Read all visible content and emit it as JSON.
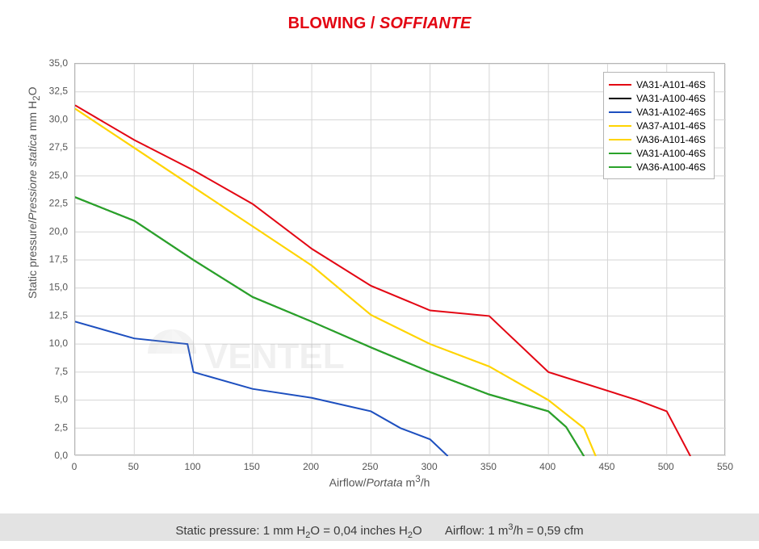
{
  "title": {
    "en": "BLOWING",
    "sep": " / ",
    "it": "SOFFIANTE"
  },
  "footer": {
    "static_label": "Static pressure: 1 mm H",
    "static_sub": "2",
    "static_tail": "O = 0,04 inches H",
    "static_sub2": "2",
    "static_tail2": "O",
    "airflow_label": "Airflow: 1 m",
    "airflow_sup": "3",
    "airflow_tail": "/h = 0,59 cfm"
  },
  "y_axis_label": {
    "en": "Static pressure",
    "it": "Pressione statica",
    "unit_pre": "  mm  H",
    "unit_sub": "2",
    "unit_post": "O"
  },
  "x_axis_label": {
    "en": "Airflow",
    "it": "Portata",
    "unit_pre": "  m",
    "unit_sup": "3",
    "unit_post": "/h"
  },
  "chart": {
    "type": "line",
    "background": "#ffffff",
    "grid_color": "#d5d5d5",
    "border_color": "#b5b5b5",
    "line_width": 2,
    "x": {
      "min": 0,
      "max": 550,
      "step": 50,
      "labels": [
        "0",
        "50",
        "100",
        "150",
        "200",
        "250",
        "300",
        "350",
        "400",
        "450",
        "500",
        "550"
      ]
    },
    "y": {
      "min": 0,
      "max": 35,
      "step": 2.5,
      "labels": [
        "0,0",
        "2,5",
        "5,0",
        "7,5",
        "10,0",
        "12,5",
        "15,0",
        "17,5",
        "20,0",
        "22,5",
        "25,0",
        "27,5",
        "30,0",
        "32,5",
        "35,0"
      ]
    },
    "series": [
      {
        "name": "VA31-A101-46S",
        "color": "#e30613",
        "points": [
          [
            0,
            31.3
          ],
          [
            50,
            28.2
          ],
          [
            100,
            25.5
          ],
          [
            150,
            22.5
          ],
          [
            200,
            18.5
          ],
          [
            250,
            15.2
          ],
          [
            300,
            13.0
          ],
          [
            350,
            12.5
          ],
          [
            400,
            7.5
          ],
          [
            475,
            5.0
          ],
          [
            500,
            4.0
          ],
          [
            520,
            0.0
          ]
        ]
      },
      {
        "name": "VA31-A100-46S",
        "color": "#000000",
        "points": [
          [
            0,
            23.1
          ],
          [
            50,
            21.0
          ],
          [
            100,
            17.5
          ],
          [
            150,
            14.2
          ],
          [
            200,
            12.0
          ],
          [
            250,
            9.7
          ],
          [
            300,
            7.5
          ],
          [
            350,
            5.5
          ],
          [
            400,
            4.0
          ],
          [
            415,
            2.6
          ],
          [
            430,
            0.0
          ]
        ]
      },
      {
        "name": "VA31-A102-46S",
        "color": "#1d4fbf",
        "points": [
          [
            0,
            12.0
          ],
          [
            50,
            10.5
          ],
          [
            95,
            10.0
          ],
          [
            100,
            7.5
          ],
          [
            150,
            6.0
          ],
          [
            200,
            5.2
          ],
          [
            250,
            4.0
          ],
          [
            275,
            2.5
          ],
          [
            300,
            1.5
          ],
          [
            315,
            0.0
          ]
        ]
      },
      {
        "name": "VA37-A101-46S",
        "color": "#ffd400",
        "points": [
          [
            0,
            31.0
          ],
          [
            50,
            27.5
          ],
          [
            100,
            24.0
          ],
          [
            150,
            20.5
          ],
          [
            200,
            17.0
          ],
          [
            250,
            12.6
          ],
          [
            300,
            10.0
          ],
          [
            350,
            8.0
          ],
          [
            400,
            5.0
          ],
          [
            430,
            2.5
          ],
          [
            440,
            0.0
          ]
        ]
      },
      {
        "name": "VA36-A101-46S",
        "color": "#ffd400",
        "points": [
          [
            0,
            31.0
          ],
          [
            50,
            27.5
          ],
          [
            100,
            24.0
          ],
          [
            150,
            20.5
          ],
          [
            200,
            17.0
          ],
          [
            250,
            12.6
          ],
          [
            300,
            10.0
          ],
          [
            350,
            8.0
          ],
          [
            400,
            5.0
          ],
          [
            430,
            2.5
          ],
          [
            440,
            0.0
          ]
        ]
      },
      {
        "name": "VA31-A100-46S",
        "color": "#2aa32a",
        "points": [
          [
            0,
            23.1
          ],
          [
            50,
            21.0
          ],
          [
            100,
            17.5
          ],
          [
            150,
            14.2
          ],
          [
            200,
            12.0
          ],
          [
            250,
            9.7
          ],
          [
            300,
            7.5
          ],
          [
            350,
            5.5
          ],
          [
            400,
            4.0
          ],
          [
            415,
            2.6
          ],
          [
            430,
            0.0
          ]
        ]
      },
      {
        "name": "VA36-A100-46S",
        "color": "#2aa32a",
        "points": [
          [
            0,
            23.1
          ],
          [
            50,
            21.0
          ],
          [
            100,
            17.5
          ],
          [
            150,
            14.2
          ],
          [
            200,
            12.0
          ],
          [
            250,
            9.7
          ],
          [
            300,
            7.5
          ],
          [
            350,
            5.5
          ],
          [
            400,
            4.0
          ],
          [
            415,
            2.6
          ],
          [
            430,
            0.0
          ]
        ]
      }
    ],
    "legend_position": "top-right"
  },
  "watermark_text": "VENTEL"
}
